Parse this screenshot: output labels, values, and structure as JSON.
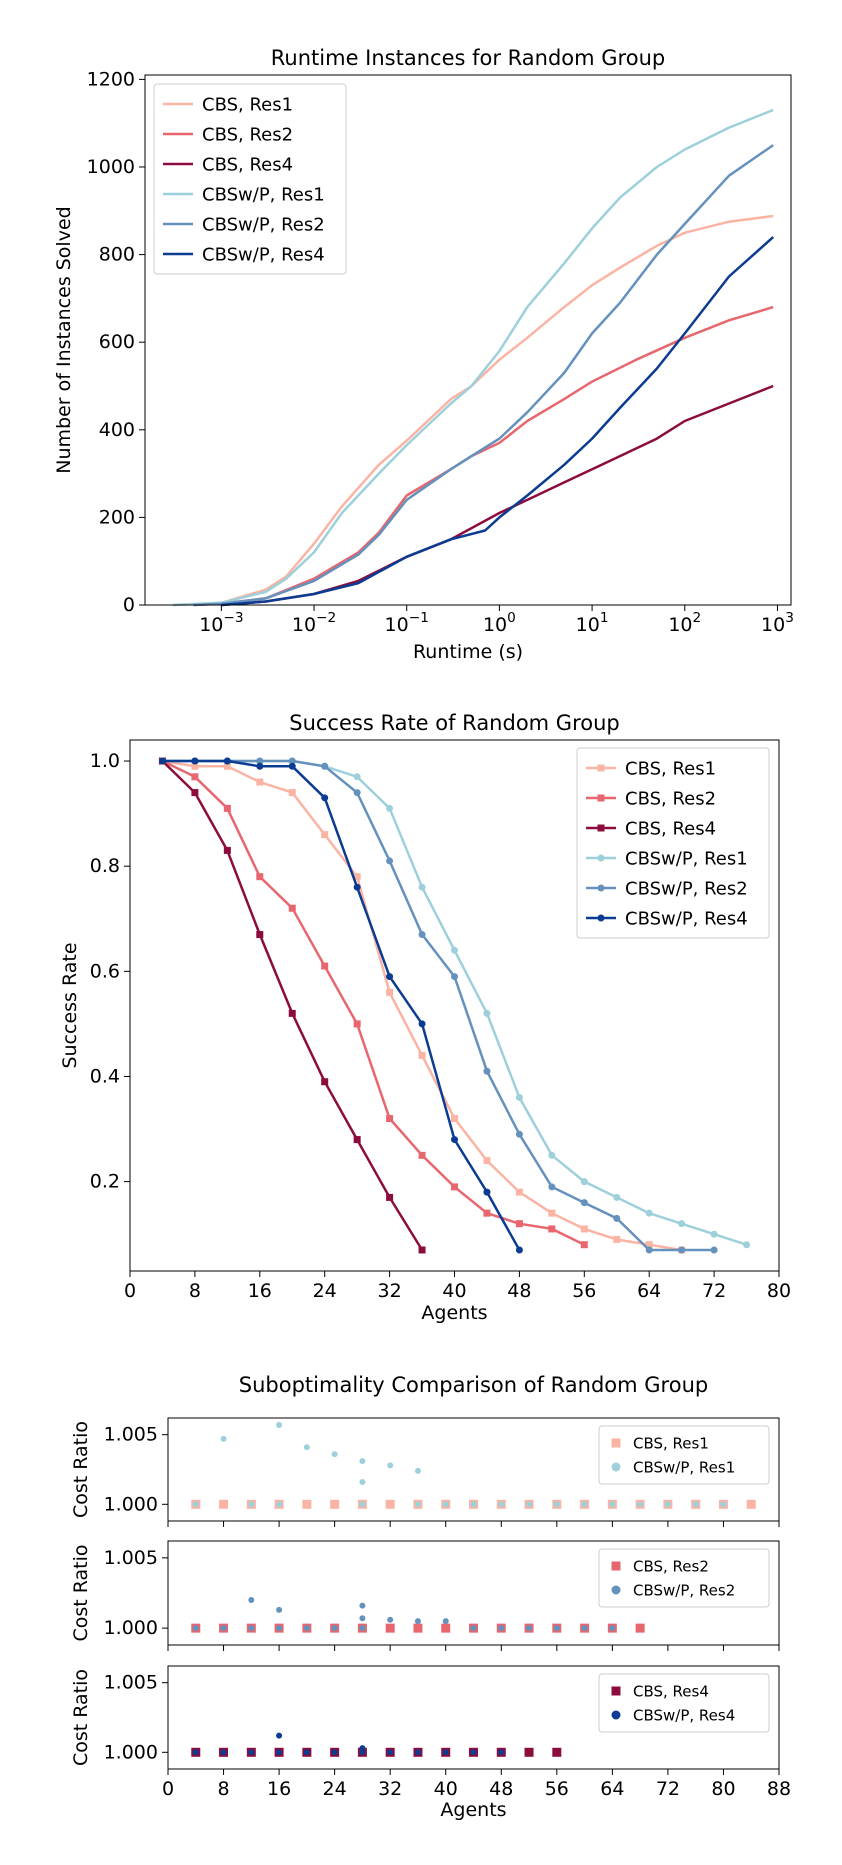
{
  "colors": {
    "cbs_res1": "#fbb4a4",
    "cbs_res2": "#e8676f",
    "cbs_res4": "#8c0c3d",
    "cbswp_res1": "#9dd0da",
    "cbswp_res2": "#6591bd",
    "cbswp_res4": "#0c3c92"
  },
  "chart_data": [
    {
      "type": "line",
      "title": "Runtime Instances for Random Group",
      "xlabel": "Runtime (s)",
      "ylabel": "Number of Instances Solved",
      "xscale": "log",
      "xlim": [
        0.00015,
        1400
      ],
      "ylim": [
        0,
        1210
      ],
      "xticks": [
        {
          "v": 0.001,
          "label": "10",
          "exp": "−3"
        },
        {
          "v": 0.01,
          "label": "10",
          "exp": "−2"
        },
        {
          "v": 0.1,
          "label": "10",
          "exp": "−1"
        },
        {
          "v": 1,
          "label": "10",
          "exp": "0"
        },
        {
          "v": 10,
          "label": "10",
          "exp": "1"
        },
        {
          "v": 100,
          "label": "10",
          "exp": "2"
        },
        {
          "v": 1000,
          "label": "10",
          "exp": "3"
        }
      ],
      "yticks": [
        {
          "v": 0,
          "label": "0"
        },
        {
          "v": 200,
          "label": "200"
        },
        {
          "v": 400,
          "label": "400"
        },
        {
          "v": 600,
          "label": "600"
        },
        {
          "v": 800,
          "label": "800"
        },
        {
          "v": 1000,
          "label": "1000"
        },
        {
          "v": 1200,
          "label": "1200"
        }
      ],
      "legend": "top-left",
      "grid": false,
      "series": [
        {
          "name": "CBS, Res1",
          "color": "cbs_res1",
          "x": [
            0.0003,
            0.001,
            0.003,
            0.005,
            0.01,
            0.02,
            0.05,
            0.1,
            0.3,
            0.5,
            1,
            2,
            5,
            10,
            20,
            50,
            100,
            300,
            900
          ],
          "y": [
            0,
            5,
            35,
            65,
            140,
            225,
            320,
            375,
            470,
            500,
            560,
            610,
            680,
            730,
            770,
            820,
            850,
            875,
            888
          ]
        },
        {
          "name": "CBS, Res2",
          "color": "cbs_res2",
          "x": [
            0.0005,
            0.001,
            0.003,
            0.01,
            0.03,
            0.05,
            0.1,
            0.3,
            0.5,
            1,
            2,
            5,
            10,
            30,
            100,
            300,
            900
          ],
          "y": [
            0,
            3,
            15,
            60,
            120,
            165,
            250,
            310,
            340,
            370,
            420,
            470,
            510,
            560,
            610,
            650,
            680
          ]
        },
        {
          "name": "CBS, Res4",
          "color": "cbs_res4",
          "x": [
            0.001,
            0.003,
            0.01,
            0.03,
            0.1,
            0.3,
            1,
            2,
            5,
            10,
            20,
            50,
            100,
            300,
            900
          ],
          "y": [
            0,
            8,
            25,
            55,
            110,
            150,
            210,
            240,
            280,
            310,
            340,
            380,
            420,
            460,
            500
          ]
        },
        {
          "name": "CBSw/P, Res1",
          "color": "cbswp_res1",
          "x": [
            0.0003,
            0.001,
            0.003,
            0.005,
            0.01,
            0.02,
            0.05,
            0.1,
            0.3,
            0.5,
            1,
            2,
            5,
            10,
            20,
            50,
            100,
            300,
            900
          ],
          "y": [
            0,
            5,
            30,
            60,
            120,
            210,
            300,
            365,
            460,
            500,
            580,
            680,
            780,
            860,
            930,
            1000,
            1040,
            1090,
            1130
          ]
        },
        {
          "name": "CBSw/P, Res2",
          "color": "cbswp_res2",
          "x": [
            0.0005,
            0.001,
            0.003,
            0.01,
            0.03,
            0.05,
            0.1,
            0.3,
            0.5,
            1,
            2,
            5,
            10,
            20,
            50,
            100,
            300,
            900
          ],
          "y": [
            0,
            3,
            15,
            55,
            115,
            160,
            240,
            310,
            340,
            380,
            440,
            530,
            620,
            690,
            800,
            870,
            980,
            1050
          ]
        },
        {
          "name": "CBSw/P, Res4",
          "color": "cbswp_res4",
          "x": [
            0.001,
            0.003,
            0.01,
            0.03,
            0.1,
            0.3,
            0.7,
            1,
            2,
            5,
            10,
            20,
            50,
            100,
            300,
            900
          ],
          "y": [
            0,
            8,
            25,
            50,
            110,
            150,
            170,
            200,
            250,
            320,
            380,
            450,
            540,
            620,
            750,
            840
          ]
        }
      ]
    },
    {
      "type": "line",
      "title": "Success Rate of Random Group",
      "xlabel": "Agents",
      "ylabel": "Success Rate",
      "xlim": [
        0,
        80
      ],
      "ylim": [
        0.03,
        1.04
      ],
      "xticks": [
        {
          "v": 0,
          "label": "0"
        },
        {
          "v": 8,
          "label": "8"
        },
        {
          "v": 16,
          "label": "16"
        },
        {
          "v": 24,
          "label": "24"
        },
        {
          "v": 32,
          "label": "32"
        },
        {
          "v": 40,
          "label": "40"
        },
        {
          "v": 48,
          "label": "48"
        },
        {
          "v": 56,
          "label": "56"
        },
        {
          "v": 64,
          "label": "64"
        },
        {
          "v": 72,
          "label": "72"
        },
        {
          "v": 80,
          "label": "80"
        }
      ],
      "yticks": [
        {
          "v": 0.2,
          "label": "0.2"
        },
        {
          "v": 0.4,
          "label": "0.4"
        },
        {
          "v": 0.6,
          "label": "0.6"
        },
        {
          "v": 0.8,
          "label": "0.8"
        },
        {
          "v": 1.0,
          "label": "1.0"
        }
      ],
      "legend": "top-right",
      "grid": false,
      "series": [
        {
          "name": "CBS, Res1",
          "color": "cbs_res1",
          "marker": "square",
          "x": [
            4,
            8,
            12,
            16,
            20,
            24,
            28,
            32,
            36,
            40,
            44,
            48,
            52,
            56,
            60,
            64,
            68
          ],
          "y": [
            1.0,
            0.99,
            0.99,
            0.96,
            0.94,
            0.86,
            0.78,
            0.56,
            0.44,
            0.32,
            0.24,
            0.18,
            0.14,
            0.11,
            0.09,
            0.08,
            0.07
          ]
        },
        {
          "name": "CBS, Res2",
          "color": "cbs_res2",
          "marker": "square",
          "x": [
            4,
            8,
            12,
            16,
            20,
            24,
            28,
            32,
            36,
            40,
            44,
            48,
            52,
            56
          ],
          "y": [
            1.0,
            0.97,
            0.91,
            0.78,
            0.72,
            0.61,
            0.5,
            0.32,
            0.25,
            0.19,
            0.14,
            0.12,
            0.11,
            0.08
          ]
        },
        {
          "name": "CBS, Res4",
          "color": "cbs_res4",
          "marker": "square",
          "x": [
            4,
            8,
            12,
            16,
            20,
            24,
            28,
            32,
            36
          ],
          "y": [
            1.0,
            0.94,
            0.83,
            0.67,
            0.52,
            0.39,
            0.28,
            0.17,
            0.07
          ]
        },
        {
          "name": "CBSw/P, Res1",
          "color": "cbswp_res1",
          "marker": "circle",
          "x": [
            4,
            8,
            12,
            16,
            20,
            24,
            28,
            32,
            36,
            40,
            44,
            48,
            52,
            56,
            60,
            64,
            68,
            72,
            76
          ],
          "y": [
            1.0,
            1.0,
            1.0,
            1.0,
            1.0,
            0.99,
            0.97,
            0.91,
            0.76,
            0.64,
            0.52,
            0.36,
            0.25,
            0.2,
            0.17,
            0.14,
            0.12,
            0.1,
            0.08
          ]
        },
        {
          "name": "CBSw/P, Res2",
          "color": "cbswp_res2",
          "marker": "circle",
          "x": [
            4,
            8,
            12,
            16,
            20,
            24,
            28,
            32,
            36,
            40,
            44,
            48,
            52,
            56,
            60,
            64,
            68,
            72
          ],
          "y": [
            1.0,
            1.0,
            1.0,
            1.0,
            1.0,
            0.99,
            0.94,
            0.81,
            0.67,
            0.59,
            0.41,
            0.29,
            0.19,
            0.16,
            0.13,
            0.07,
            0.07,
            0.07
          ]
        },
        {
          "name": "CBSw/P, Res4",
          "color": "cbswp_res4",
          "marker": "circle",
          "x": [
            4,
            8,
            12,
            16,
            20,
            24,
            28,
            32,
            36,
            40,
            44,
            48
          ],
          "y": [
            1.0,
            1.0,
            1.0,
            0.99,
            0.99,
            0.93,
            0.76,
            0.59,
            0.5,
            0.28,
            0.18,
            0.07
          ]
        }
      ]
    },
    {
      "type": "scatter",
      "title": "Suboptimality Comparison of Random Group",
      "xlabel": "Agents",
      "ylabel": "Cost Ratio",
      "xlim": [
        0,
        88
      ],
      "ylim": [
        0.9988,
        1.0062
      ],
      "xticks": [
        {
          "v": 0,
          "label": "0"
        },
        {
          "v": 8,
          "label": "8"
        },
        {
          "v": 16,
          "label": "16"
        },
        {
          "v": 24,
          "label": "24"
        },
        {
          "v": 32,
          "label": "32"
        },
        {
          "v": 40,
          "label": "40"
        },
        {
          "v": 48,
          "label": "48"
        },
        {
          "v": 56,
          "label": "56"
        },
        {
          "v": 64,
          "label": "64"
        },
        {
          "v": 72,
          "label": "72"
        },
        {
          "v": 80,
          "label": "80"
        },
        {
          "v": 88,
          "label": "88"
        }
      ],
      "yticks": [
        {
          "v": 1.0,
          "label": "1.000"
        },
        {
          "v": 1.005,
          "label": "1.005"
        }
      ],
      "legend": "top-right",
      "grid": false,
      "panels": [
        {
          "series": [
            {
              "name": "CBS, Res1",
              "color": "cbs_res1",
              "marker": "square",
              "x": [
                4,
                8,
                12,
                16,
                20,
                24,
                28,
                32,
                36,
                40,
                44,
                48,
                52,
                56,
                60,
                64,
                68,
                72,
                76,
                80,
                84
              ],
              "y": [
                1.0,
                1.0,
                1.0,
                1.0,
                1.0,
                1.0,
                1.0,
                1.0,
                1.0,
                1.0,
                1.0,
                1.0,
                1.0,
                1.0,
                1.0,
                1.0,
                1.0,
                1.0,
                1.0,
                1.0,
                1.0
              ]
            },
            {
              "name": "CBSw/P, Res1",
              "color": "cbswp_res1",
              "marker": "circle",
              "x": [
                4,
                8,
                12,
                16,
                16,
                20,
                24,
                28,
                28,
                28,
                32,
                36,
                36,
                40,
                44,
                48,
                52,
                56,
                60,
                64,
                68,
                72,
                76,
                80
              ],
              "y": [
                1.0,
                1.0047,
                1.0,
                1.0,
                1.0057,
                1.0041,
                1.0036,
                1.0031,
                1.0016,
                1.0,
                1.0028,
                1.0024,
                1.0,
                1.0,
                1.0,
                1.0,
                1.0,
                1.0,
                1.0,
                1.0,
                1.0,
                1.0,
                1.0,
                1.0
              ]
            }
          ]
        },
        {
          "series": [
            {
              "name": "CBS, Res2",
              "color": "cbs_res2",
              "marker": "square",
              "x": [
                4,
                8,
                12,
                16,
                20,
                24,
                28,
                32,
                36,
                40,
                44,
                48,
                52,
                56,
                60,
                64,
                68
              ],
              "y": [
                1.0,
                1.0,
                1.0,
                1.0,
                1.0,
                1.0,
                1.0,
                1.0,
                1.0,
                1.0,
                1.0,
                1.0,
                1.0,
                1.0,
                1.0,
                1.0,
                1.0
              ]
            },
            {
              "name": "CBSw/P, Res2",
              "color": "cbswp_res2",
              "marker": "circle",
              "x": [
                4,
                8,
                12,
                12,
                16,
                16,
                20,
                24,
                28,
                28,
                28,
                32,
                36,
                40,
                44,
                48,
                52,
                56,
                60,
                64
              ],
              "y": [
                1.0,
                1.0,
                1.0,
                1.002,
                1.0,
                1.0013,
                1.0,
                1.0,
                1.0016,
                1.0007,
                1.0,
                1.0006,
                1.0005,
                1.0005,
                1.0,
                1.0,
                1.0,
                1.0,
                1.0,
                1.0
              ]
            }
          ]
        },
        {
          "series": [
            {
              "name": "CBS, Res4",
              "color": "cbs_res4",
              "marker": "square",
              "x": [
                4,
                8,
                12,
                16,
                20,
                24,
                28,
                32,
                36,
                40,
                44,
                48,
                52,
                56
              ],
              "y": [
                1.0,
                1.0,
                1.0,
                1.0,
                1.0,
                1.0,
                1.0,
                1.0,
                1.0,
                1.0,
                1.0,
                1.0,
                1.0,
                1.0
              ]
            },
            {
              "name": "CBSw/P, Res4",
              "color": "cbswp_res4",
              "marker": "circle",
              "x": [
                4,
                8,
                12,
                16,
                16,
                20,
                24,
                28,
                28,
                32,
                36,
                40,
                44,
                48
              ],
              "y": [
                1.0,
                1.0,
                1.0,
                1.0,
                1.0012,
                1.0,
                1.0,
                1.0003,
                1.0,
                1.0,
                1.0,
                1.0,
                1.0,
                1.0
              ]
            }
          ]
        }
      ]
    }
  ]
}
